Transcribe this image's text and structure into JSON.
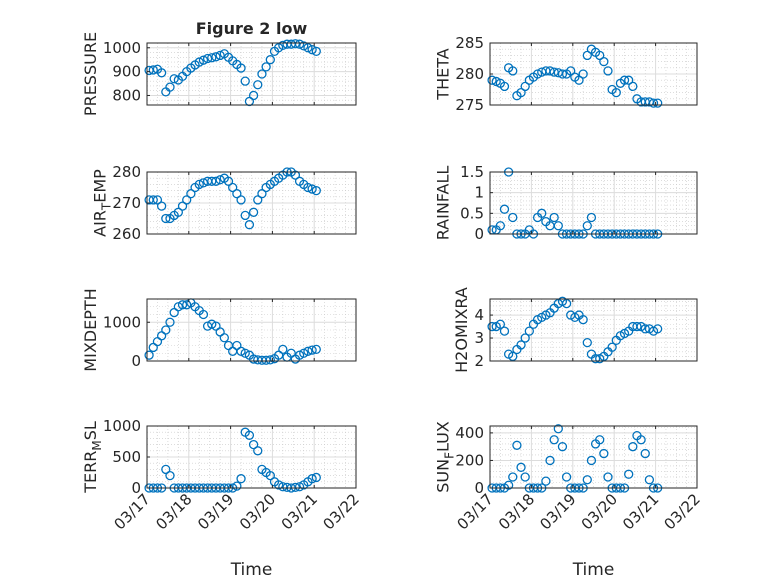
{
  "title": "Figure 2 low",
  "xlabel": "Time",
  "x_tick_labels": [
    "03/17",
    "03/18",
    "03/19",
    "03/20",
    "03/21",
    "03/22"
  ],
  "colors": {
    "marker": "#0072BD",
    "axis": "#262626",
    "grid": "#dcdcdc"
  },
  "chart_data": [
    {
      "type": "scatter",
      "id": "pressure",
      "ylabel": {
        "main": "PRESSURE",
        "sub": "",
        "rest": ""
      },
      "ylim": [
        760,
        1020
      ],
      "yticks": [
        800,
        900,
        1000
      ],
      "ytick_labels": [
        "800",
        "900",
        "1000"
      ],
      "show_xticklabels": false,
      "title": "Figure 2 low",
      "values": [
        905,
        907,
        910,
        895,
        815,
        835,
        870,
        865,
        880,
        900,
        915,
        928,
        940,
        948,
        955,
        958,
        962,
        968,
        975,
        960,
        945,
        930,
        915,
        860,
        775,
        800,
        845,
        890,
        920,
        950,
        985,
        1000,
        1010,
        1015,
        1015,
        1017,
        1015,
        1008,
        1000,
        992,
        985
      ]
    },
    {
      "type": "scatter",
      "id": "theta",
      "ylabel": {
        "main": "THETA",
        "sub": "",
        "rest": ""
      },
      "ylim": [
        275,
        285
      ],
      "yticks": [
        275,
        280,
        285
      ],
      "ytick_labels": [
        "275",
        "280",
        "285"
      ],
      "show_xticklabels": false,
      "values": [
        279,
        278.8,
        278.5,
        278,
        281,
        280.5,
        276.5,
        277,
        278,
        279,
        279.5,
        280,
        280.3,
        280.5,
        280.5,
        280.3,
        280.2,
        280,
        280,
        280.5,
        279.5,
        279,
        280,
        283,
        284,
        283.5,
        283,
        282,
        280.5,
        277.5,
        277,
        278.5,
        279,
        279,
        278,
        276,
        275.5,
        275.5,
        275.5,
        275.3,
        275.3
      ]
    },
    {
      "type": "scatter",
      "id": "air_temp",
      "ylabel": {
        "main": "AIR",
        "sub": "T",
        "rest": "EMP"
      },
      "ylim": [
        260,
        280
      ],
      "yticks": [
        260,
        270,
        280
      ],
      "ytick_labels": [
        "260",
        "270",
        "280"
      ],
      "show_xticklabels": false,
      "values": [
        271,
        271,
        271,
        269,
        265,
        265,
        266,
        267,
        269,
        271,
        273,
        275,
        276,
        276.5,
        277,
        277,
        277,
        277.5,
        278,
        277,
        275,
        273,
        271,
        266,
        263,
        267,
        271,
        273,
        275,
        276,
        277,
        278,
        279,
        280,
        280,
        279,
        277,
        276,
        275,
        274.5,
        274
      ]
    },
    {
      "type": "scatter",
      "id": "rainfall",
      "ylabel": {
        "main": "RAINFALL",
        "sub": "",
        "rest": ""
      },
      "ylim": [
        0,
        1.5
      ],
      "yticks": [
        0,
        0.5,
        1,
        1.5
      ],
      "ytick_labels": [
        "0",
        "0.5",
        "1",
        "1.5"
      ],
      "show_xticklabels": false,
      "values": [
        0.1,
        0.1,
        0.2,
        0.6,
        1.5,
        0.4,
        0,
        0,
        0,
        0.1,
        0,
        0.4,
        0.5,
        0.3,
        0.2,
        0.4,
        0.2,
        0,
        0,
        0,
        0,
        0,
        0,
        0.2,
        0.4,
        0,
        0,
        0,
        0,
        0,
        0,
        0,
        0,
        0,
        0,
        0,
        0,
        0,
        0,
        0,
        0
      ]
    },
    {
      "type": "scatter",
      "id": "mixdepth",
      "ylabel": {
        "main": "MIXDEPTH",
        "sub": "",
        "rest": ""
      },
      "ylim": [
        0,
        1600
      ],
      "yticks": [
        0,
        1000
      ],
      "ytick_labels": [
        "0",
        "1000"
      ],
      "show_xticklabels": false,
      "values": [
        150,
        350,
        500,
        650,
        800,
        1000,
        1250,
        1400,
        1450,
        1450,
        1500,
        1400,
        1300,
        1200,
        900,
        950,
        900,
        750,
        600,
        400,
        250,
        400,
        250,
        200,
        150,
        50,
        30,
        20,
        20,
        30,
        60,
        150,
        300,
        100,
        200,
        50,
        150,
        200,
        250,
        280,
        300
      ]
    },
    {
      "type": "scatter",
      "id": "h2omixra",
      "ylabel": {
        "main": "H2OMIXRA",
        "sub": "",
        "rest": ""
      },
      "ylim": [
        2,
        4.7
      ],
      "yticks": [
        2,
        3,
        4
      ],
      "ytick_labels": [
        "2",
        "3",
        "4"
      ],
      "show_xticklabels": false,
      "values": [
        3.5,
        3.5,
        3.6,
        3.3,
        2.3,
        2.2,
        2.5,
        2.7,
        3.0,
        3.3,
        3.6,
        3.8,
        3.9,
        4.0,
        4.1,
        4.3,
        4.5,
        4.6,
        4.5,
        4.0,
        3.9,
        4.0,
        3.8,
        2.8,
        2.3,
        2.1,
        2.1,
        2.2,
        2.4,
        2.6,
        2.9,
        3.1,
        3.2,
        3.3,
        3.5,
        3.5,
        3.5,
        3.4,
        3.4,
        3.3,
        3.4
      ]
    },
    {
      "type": "scatter",
      "id": "terr_msl",
      "ylabel": {
        "main": "TERR",
        "sub": "M",
        "rest": "SL"
      },
      "ylim": [
        0,
        1000
      ],
      "yticks": [
        0,
        500,
        1000
      ],
      "ytick_labels": [
        "0",
        "500",
        "1000"
      ],
      "show_xticklabels": true,
      "values": [
        0,
        0,
        0,
        0,
        300,
        200,
        0,
        0,
        0,
        0,
        0,
        0,
        0,
        0,
        0,
        0,
        0,
        0,
        0,
        0,
        0,
        30,
        150,
        900,
        850,
        700,
        600,
        300,
        250,
        200,
        100,
        50,
        20,
        10,
        0,
        10,
        20,
        50,
        100,
        150,
        170
      ]
    },
    {
      "type": "scatter",
      "id": "sun_flux",
      "ylabel": {
        "main": "SUN",
        "sub": "F",
        "rest": "LUX"
      },
      "ylim": [
        0,
        450
      ],
      "yticks": [
        0,
        200,
        400
      ],
      "ytick_labels": [
        "0",
        "200",
        "400"
      ],
      "show_xticklabels": true,
      "values": [
        0,
        0,
        0,
        0,
        20,
        80,
        310,
        150,
        80,
        0,
        0,
        0,
        0,
        50,
        200,
        350,
        430,
        300,
        80,
        0,
        0,
        0,
        0,
        60,
        200,
        320,
        350,
        250,
        80,
        0,
        0,
        0,
        0,
        100,
        300,
        380,
        350,
        250,
        60,
        0,
        0
      ]
    }
  ],
  "x_days": {
    "start": 0.05,
    "step": 0.1,
    "xlim": [
      0,
      5
    ]
  }
}
